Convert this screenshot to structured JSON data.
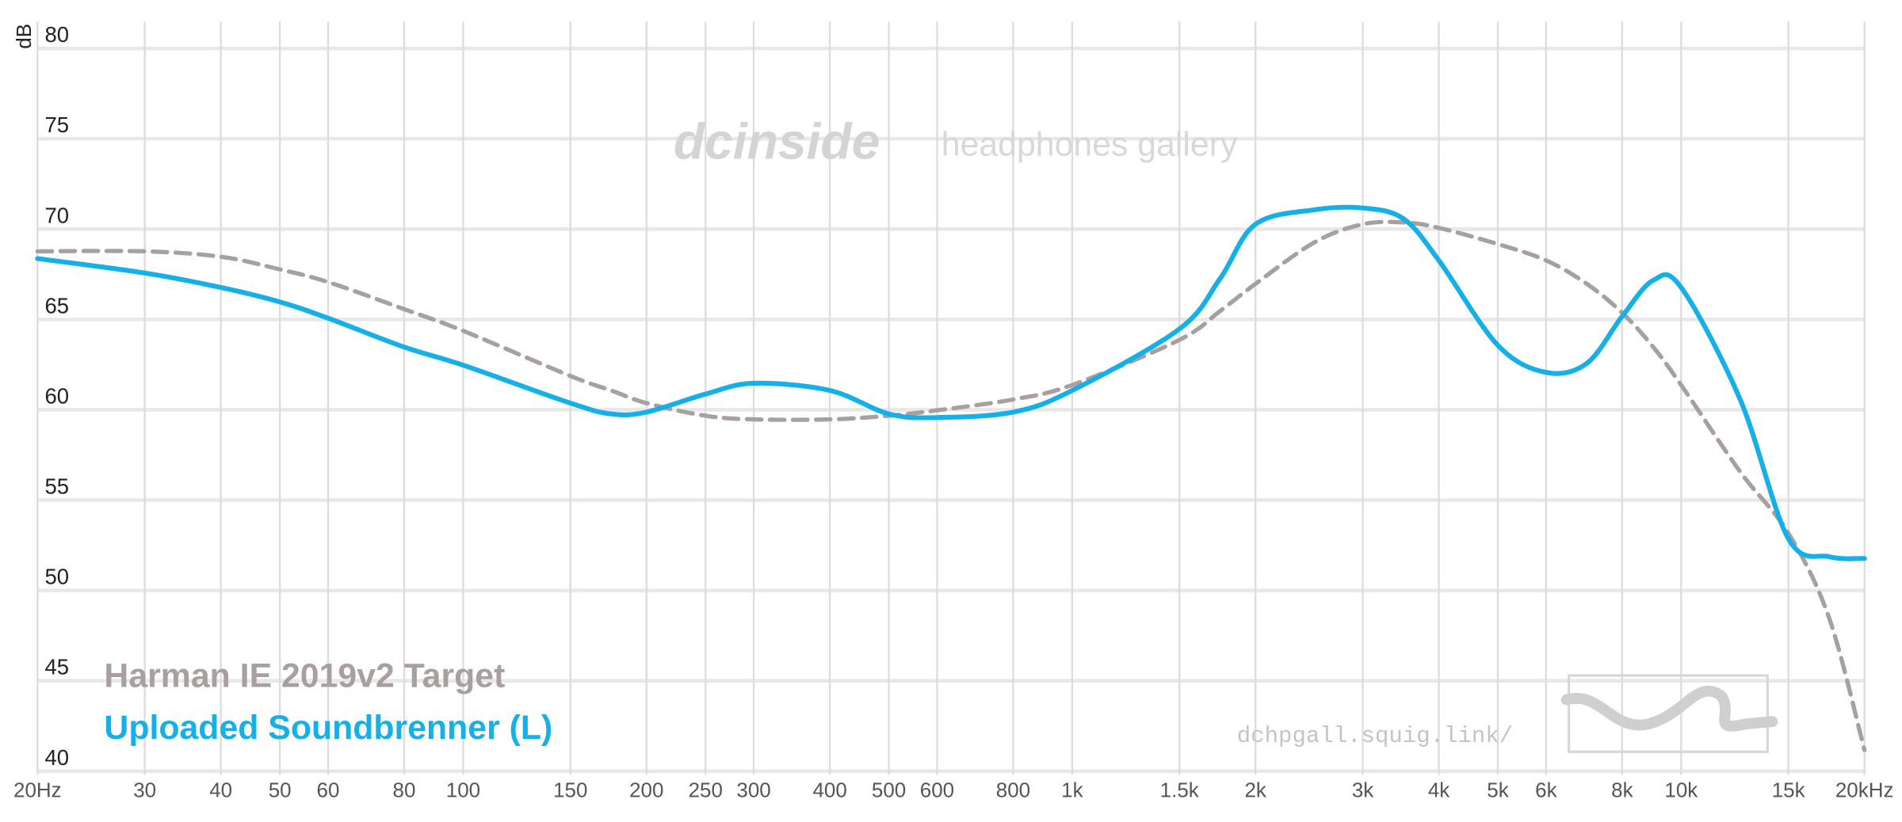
{
  "chart_data": {
    "type": "line",
    "ylabel": "dB",
    "x": [
      20,
      30,
      40,
      50,
      60,
      80,
      100,
      150,
      175,
      200,
      250,
      300,
      400,
      500,
      600,
      800,
      1000,
      1500,
      1750,
      2000,
      2500,
      3000,
      3500,
      4000,
      5000,
      6000,
      7000,
      8000,
      9000,
      10000,
      12500,
      15000,
      17500,
      20000
    ],
    "series": [
      {
        "name": "Harman IE 2019v2 Target",
        "color": "#a8a09e",
        "dashed": true,
        "values": [
          68.1,
          68.1,
          67.8,
          67.1,
          66.4,
          64.9,
          63.7,
          61.2,
          60.4,
          59.7,
          59.0,
          58.8,
          58.8,
          59.0,
          59.3,
          59.9,
          60.7,
          63.2,
          64.8,
          66.3,
          68.6,
          69.6,
          69.7,
          69.4,
          68.5,
          67.6,
          66.3,
          64.7,
          62.8,
          60.7,
          55.9,
          52.5,
          47.8,
          40.5
        ]
      },
      {
        "name": "Uploaded Soundbrenner (L)",
        "color": "#16b0e8",
        "dashed": false,
        "values": [
          67.7,
          66.9,
          66.1,
          65.3,
          64.4,
          62.8,
          61.8,
          59.7,
          59.1,
          59.2,
          60.2,
          60.8,
          60.4,
          59.1,
          58.9,
          59.2,
          60.4,
          63.8,
          66.6,
          69.6,
          70.4,
          70.5,
          69.9,
          67.6,
          62.9,
          61.4,
          61.9,
          64.5,
          66.5,
          66.1,
          59.9,
          52.2,
          51.2,
          51.1
        ]
      }
    ],
    "xlog": true,
    "xlim": [
      20,
      20000
    ],
    "ylim": [
      40,
      80
    ],
    "xticks": [
      {
        "value": 20,
        "label": "20Hz"
      },
      30,
      40,
      50,
      60,
      80,
      100,
      150,
      200,
      250,
      300,
      400,
      500,
      600,
      800,
      {
        "value": 1000,
        "label": "1k"
      },
      {
        "value": 1500,
        "label": "1.5k"
      },
      {
        "value": 2000,
        "label": "2k"
      },
      {
        "value": 3000,
        "label": "3k"
      },
      {
        "value": 4000,
        "label": "4k"
      },
      {
        "value": 5000,
        "label": "5k"
      },
      {
        "value": 6000,
        "label": "6k"
      },
      {
        "value": 8000,
        "label": "8k"
      },
      {
        "value": 10000,
        "label": "10k"
      },
      {
        "value": 15000,
        "label": "15k"
      },
      {
        "value": 20000,
        "label": "20kHz"
      }
    ],
    "yticks": [
      40,
      45,
      50,
      55,
      60,
      65,
      70,
      75,
      80
    ],
    "grid": true,
    "watermark": {
      "brand": "dcinside",
      "text": "headphones gallery",
      "url": "dchpgall.squig.link/"
    }
  }
}
